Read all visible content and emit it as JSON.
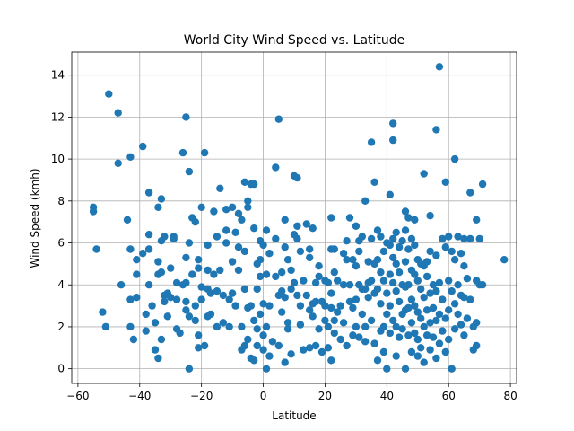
{
  "chart_data": {
    "type": "scatter",
    "title": "World City Wind Speed vs. Latitude",
    "xlabel": "Latitude",
    "ylabel": "Wind Speed (kmh)",
    "xlim": [
      -62,
      82
    ],
    "ylim": [
      -0.7,
      15.1
    ],
    "xticks": [
      -60,
      -40,
      -20,
      0,
      20,
      40,
      60,
      80
    ],
    "yticks": [
      0,
      2,
      4,
      6,
      8,
      10,
      12,
      14
    ],
    "grid": true,
    "marker_color": "#1f77b4",
    "points": [
      [
        -55,
        7.7
      ],
      [
        -55,
        7.5
      ],
      [
        -54,
        5.7
      ],
      [
        -52,
        2.7
      ],
      [
        -51,
        2.0
      ],
      [
        -50,
        13.1
      ],
      [
        -47,
        12.2
      ],
      [
        -47,
        9.8
      ],
      [
        -46,
        4.0
      ],
      [
        -44,
        7.1
      ],
      [
        -43,
        5.7
      ],
      [
        -43,
        10.1
      ],
      [
        -43,
        3.3
      ],
      [
        -43,
        2.0
      ],
      [
        -42,
        1.4
      ],
      [
        -41,
        5.2
      ],
      [
        -41,
        4.5
      ],
      [
        -41,
        3.4
      ],
      [
        -39,
        10.6
      ],
      [
        -39,
        5.5
      ],
      [
        -38,
        2.6
      ],
      [
        -38,
        1.8
      ],
      [
        -37,
        6.4
      ],
      [
        -37,
        8.4
      ],
      [
        -37,
        5.7
      ],
      [
        -37,
        4.0
      ],
      [
        -36,
        3.0
      ],
      [
        -35,
        2.2
      ],
      [
        -35,
        0.9
      ],
      [
        -34,
        5.1
      ],
      [
        -34,
        4.5
      ],
      [
        -34,
        0.5
      ],
      [
        -34,
        7.7
      ],
      [
        -33,
        1.4
      ],
      [
        -33,
        8.1
      ],
      [
        -33,
        6.1
      ],
      [
        -33,
        4.6
      ],
      [
        -32,
        3.5
      ],
      [
        -32,
        6.3
      ],
      [
        -32,
        3.2
      ],
      [
        -31,
        2.5
      ],
      [
        -31,
        3.6
      ],
      [
        -30,
        4.8
      ],
      [
        -30,
        3.4
      ],
      [
        -29,
        6.3
      ],
      [
        -29,
        6.2
      ],
      [
        -28,
        4.1
      ],
      [
        -28,
        3.3
      ],
      [
        -28,
        1.9
      ],
      [
        -27,
        1.7
      ],
      [
        -26,
        10.3
      ],
      [
        -26,
        4.0
      ],
      [
        -25,
        12.0
      ],
      [
        -25,
        5.3
      ],
      [
        -25,
        4.1
      ],
      [
        -25,
        3.2
      ],
      [
        -25,
        2.8
      ],
      [
        -24,
        6.0
      ],
      [
        -24,
        9.4
      ],
      [
        -24,
        2.5
      ],
      [
        -24,
        0.0
      ],
      [
        -23,
        7.2
      ],
      [
        -23,
        4.5
      ],
      [
        -22,
        3.0
      ],
      [
        -22,
        2.3
      ],
      [
        -22,
        7.0
      ],
      [
        -21,
        5.2
      ],
      [
        -21,
        4.8
      ],
      [
        -21,
        1.6
      ],
      [
        -21,
        1.0
      ],
      [
        -20,
        7.7
      ],
      [
        -20,
        3.9
      ],
      [
        -20,
        3.3
      ],
      [
        -19,
        10.3
      ],
      [
        -19,
        1.1
      ],
      [
        -18,
        3.8
      ],
      [
        -18,
        2.5
      ],
      [
        -18,
        5.9
      ],
      [
        -18,
        4.7
      ],
      [
        -17,
        3.6
      ],
      [
        -17,
        2.6
      ],
      [
        -16,
        7.5
      ],
      [
        -16,
        4.5
      ],
      [
        -15,
        3.7
      ],
      [
        -15,
        2.0
      ],
      [
        -15,
        6.3
      ],
      [
        -14,
        4.7
      ],
      [
        -14,
        8.6
      ],
      [
        -13,
        3.5
      ],
      [
        -13,
        2.2
      ],
      [
        -12,
        7.6
      ],
      [
        -12,
        6.6
      ],
      [
        -12,
        6.0
      ],
      [
        -11,
        3.3
      ],
      [
        -11,
        2.0
      ],
      [
        -10,
        7.7
      ],
      [
        -10,
        5.1
      ],
      [
        -10,
        3.6
      ],
      [
        -9,
        6.5
      ],
      [
        -9,
        3.0
      ],
      [
        -8,
        7.4
      ],
      [
        -8,
        4.7
      ],
      [
        -8,
        5.8
      ],
      [
        -7,
        2.0
      ],
      [
        -7,
        0.9
      ],
      [
        -7,
        7.1
      ],
      [
        -6,
        8.9
      ],
      [
        -6,
        5.6
      ],
      [
        -6,
        3.8
      ],
      [
        -6,
        1.1
      ],
      [
        -5,
        8.0
      ],
      [
        -5,
        7.7
      ],
      [
        -5,
        2.9
      ],
      [
        -5,
        1.4
      ],
      [
        -4,
        8.8
      ],
      [
        -4,
        3.0
      ],
      [
        -4,
        0.5
      ],
      [
        -3,
        8.8
      ],
      [
        -3,
        6.7
      ],
      [
        -3,
        0.4
      ],
      [
        -3,
        2.3
      ],
      [
        -2,
        5.0
      ],
      [
        -2,
        3.8
      ],
      [
        -2,
        1.9
      ],
      [
        -2,
        1.1
      ],
      [
        -1,
        5.2
      ],
      [
        -1,
        4.4
      ],
      [
        -1,
        2.6
      ],
      [
        -1,
        6.1
      ],
      [
        0,
        5.9
      ],
      [
        0,
        3.1
      ],
      [
        0,
        1.6
      ],
      [
        0,
        0.9
      ],
      [
        1,
        6.6
      ],
      [
        1,
        4.5
      ],
      [
        1,
        2.0
      ],
      [
        1,
        0.0
      ],
      [
        2,
        5.5
      ],
      [
        2,
        3.0
      ],
      [
        2,
        0.6
      ],
      [
        3,
        1.3
      ],
      [
        4,
        9.6
      ],
      [
        4,
        6.2
      ],
      [
        4,
        4.4
      ],
      [
        5,
        1.1
      ],
      [
        5,
        3.5
      ],
      [
        5,
        11.9
      ],
      [
        6,
        4.6
      ],
      [
        6,
        3.7
      ],
      [
        6,
        2.7
      ],
      [
        7,
        0.3
      ],
      [
        7,
        5.8
      ],
      [
        7,
        7.1
      ],
      [
        7,
        3.4
      ],
      [
        8,
        2.2
      ],
      [
        8,
        1.9
      ],
      [
        8,
        5.2
      ],
      [
        9,
        4.7
      ],
      [
        9,
        3.8
      ],
      [
        9,
        0.7
      ],
      [
        10,
        6.4
      ],
      [
        10,
        9.2
      ],
      [
        10,
        4.1
      ],
      [
        11,
        6.2
      ],
      [
        11,
        3.5
      ],
      [
        11,
        9.1
      ],
      [
        11,
        6.8
      ],
      [
        12,
        5.6
      ],
      [
        12,
        3.0
      ],
      [
        12,
        2.1
      ],
      [
        13,
        4.2
      ],
      [
        13,
        0.9
      ],
      [
        14,
        6.9
      ],
      [
        14,
        3.5
      ],
      [
        15,
        5.7
      ],
      [
        15,
        5.3
      ],
      [
        15,
        2.8
      ],
      [
        15,
        1.0
      ],
      [
        16,
        6.7
      ],
      [
        16,
        3.1
      ],
      [
        16,
        2.5
      ],
      [
        17,
        4.1
      ],
      [
        17,
        1.1
      ],
      [
        17,
        3.2
      ],
      [
        18,
        4.9
      ],
      [
        18,
        4.4
      ],
      [
        18,
        1.9
      ],
      [
        19,
        3.2
      ],
      [
        19,
        0.8
      ],
      [
        20,
        4.2
      ],
      [
        20,
        3.0
      ],
      [
        20,
        2.3
      ],
      [
        21,
        4.1
      ],
      [
        21,
        2.0
      ],
      [
        21,
        1.0
      ],
      [
        22,
        7.2
      ],
      [
        22,
        5.7
      ],
      [
        22,
        3.6
      ],
      [
        22,
        2.9
      ],
      [
        22,
        0.4
      ],
      [
        23,
        5.7
      ],
      [
        23,
        4.6
      ],
      [
        23,
        2.3
      ],
      [
        23,
        1.7
      ],
      [
        24,
        4.2
      ],
      [
        24,
        2.7
      ],
      [
        25,
        3.0
      ],
      [
        25,
        1.4
      ],
      [
        26,
        5.5
      ],
      [
        26,
        4.0
      ],
      [
        26,
        2.2
      ],
      [
        27,
        6.1
      ],
      [
        27,
        5.2
      ],
      [
        27,
        1.1
      ],
      [
        28,
        7.2
      ],
      [
        28,
        4.0
      ],
      [
        28,
        3.2
      ],
      [
        29,
        5.2
      ],
      [
        29,
        2.9
      ],
      [
        29,
        1.6
      ],
      [
        30,
        6.8
      ],
      [
        30,
        4.9
      ],
      [
        30,
        3.3
      ],
      [
        30,
        2.0
      ],
      [
        31,
        6.1
      ],
      [
        31,
        5.6
      ],
      [
        31,
        4.0
      ],
      [
        31,
        1.5
      ],
      [
        32,
        6.3
      ],
      [
        32,
        3.8
      ],
      [
        32,
        2.6
      ],
      [
        33,
        8.0
      ],
      [
        33,
        3.8
      ],
      [
        33,
        2.0
      ],
      [
        33,
        1.3
      ],
      [
        34,
        5.1
      ],
      [
        34,
        4.1
      ],
      [
        34,
        3.4
      ],
      [
        35,
        10.8
      ],
      [
        35,
        6.2
      ],
      [
        35,
        4.2
      ],
      [
        35,
        2.3
      ],
      [
        36,
        8.9
      ],
      [
        36,
        5.0
      ],
      [
        36,
        3.6
      ],
      [
        36,
        1.2
      ],
      [
        37,
        6.6
      ],
      [
        37,
        5.2
      ],
      [
        37,
        3.8
      ],
      [
        37,
        0.4
      ],
      [
        38,
        6.3
      ],
      [
        38,
        4.6
      ],
      [
        38,
        3.1
      ],
      [
        38,
        1.8
      ],
      [
        39,
        5.6
      ],
      [
        39,
        4.2
      ],
      [
        39,
        2.0
      ],
      [
        39,
        0.8
      ],
      [
        40,
        6.0
      ],
      [
        40,
        3.6
      ],
      [
        40,
        2.6
      ],
      [
        40,
        0.0
      ],
      [
        41,
        8.3
      ],
      [
        41,
        5.9
      ],
      [
        41,
        4.5
      ],
      [
        41,
        3.0
      ],
      [
        41,
        1.7
      ],
      [
        42,
        11.7
      ],
      [
        42,
        10.9
      ],
      [
        42,
        6.2
      ],
      [
        42,
        5.3
      ],
      [
        42,
        4.1
      ],
      [
        42,
        2.3
      ],
      [
        43,
        6.5
      ],
      [
        43,
        5.0
      ],
      [
        43,
        3.7
      ],
      [
        43,
        2.0
      ],
      [
        43,
        0.6
      ],
      [
        44,
        5.8
      ],
      [
        44,
        4.6
      ],
      [
        44,
        3.2
      ],
      [
        44,
        1.5
      ],
      [
        45,
        6.1
      ],
      [
        45,
        4.0
      ],
      [
        45,
        2.6
      ],
      [
        45,
        1.9
      ],
      [
        46,
        7.5
      ],
      [
        46,
        6.6
      ],
      [
        46,
        5.1
      ],
      [
        46,
        3.9
      ],
      [
        46,
        2.8
      ],
      [
        46,
        0.0
      ],
      [
        47,
        7.2
      ],
      [
        47,
        5.7
      ],
      [
        47,
        4.0
      ],
      [
        47,
        2.9
      ],
      [
        47,
        1.6
      ],
      [
        48,
        6.2
      ],
      [
        48,
        4.7
      ],
      [
        48,
        3.3
      ],
      [
        48,
        2.2
      ],
      [
        48,
        0.8
      ],
      [
        49,
        7.1
      ],
      [
        49,
        5.9
      ],
      [
        49,
        4.5
      ],
      [
        49,
        3.0
      ],
      [
        49,
        1.7
      ],
      [
        50,
        5.2
      ],
      [
        50,
        4.2
      ],
      [
        50,
        2.7
      ],
      [
        50,
        1.4
      ],
      [
        50,
        0.6
      ],
      [
        51,
        5.0
      ],
      [
        51,
        3.8
      ],
      [
        51,
        2.4
      ],
      [
        51,
        1.0
      ],
      [
        52,
        9.3
      ],
      [
        52,
        4.9
      ],
      [
        52,
        3.4
      ],
      [
        52,
        2.0
      ],
      [
        52,
        0.3
      ],
      [
        53,
        5.1
      ],
      [
        53,
        4.4
      ],
      [
        53,
        2.8
      ],
      [
        53,
        1.6
      ],
      [
        54,
        7.3
      ],
      [
        54,
        5.6
      ],
      [
        54,
        3.6
      ],
      [
        54,
        2.2
      ],
      [
        54,
        0.9
      ],
      [
        55,
        4.0
      ],
      [
        55,
        2.9
      ],
      [
        55,
        1.5
      ],
      [
        56,
        11.4
      ],
      [
        56,
        5.4
      ],
      [
        56,
        3.7
      ],
      [
        56,
        2.3
      ],
      [
        56,
        0.5
      ],
      [
        57,
        14.4
      ],
      [
        57,
        4.1
      ],
      [
        57,
        2.6
      ],
      [
        57,
        1.2
      ],
      [
        58,
        6.2
      ],
      [
        58,
        3.3
      ],
      [
        58,
        1.8
      ],
      [
        59,
        8.9
      ],
      [
        59,
        5.8
      ],
      [
        59,
        2.4
      ],
      [
        59,
        0.8
      ],
      [
        60,
        6.3
      ],
      [
        60,
        4.2
      ],
      [
        60,
        2.8
      ],
      [
        60,
        1.4
      ],
      [
        61,
        5.6
      ],
      [
        61,
        3.7
      ],
      [
        61,
        0.0
      ],
      [
        62,
        10.0
      ],
      [
        62,
        5.2
      ],
      [
        62,
        3.1
      ],
      [
        62,
        1.9
      ],
      [
        63,
        6.3
      ],
      [
        63,
        4.0
      ],
      [
        63,
        2.6
      ],
      [
        64,
        5.5
      ],
      [
        64,
        3.5
      ],
      [
        64,
        2.1
      ],
      [
        65,
        6.2
      ],
      [
        65,
        4.9
      ],
      [
        65,
        3.4
      ],
      [
        65,
        1.6
      ],
      [
        66,
        4.3
      ],
      [
        66,
        2.4
      ],
      [
        67,
        6.2
      ],
      [
        67,
        8.4
      ],
      [
        67,
        3.3
      ],
      [
        68,
        2.0
      ],
      [
        68,
        0.9
      ],
      [
        69,
        7.1
      ],
      [
        69,
        4.2
      ],
      [
        69,
        2.2
      ],
      [
        69,
        1.1
      ],
      [
        70,
        4.0
      ],
      [
        70,
        6.2
      ],
      [
        71,
        8.8
      ],
      [
        71,
        4.0
      ],
      [
        78,
        5.2
      ]
    ]
  }
}
